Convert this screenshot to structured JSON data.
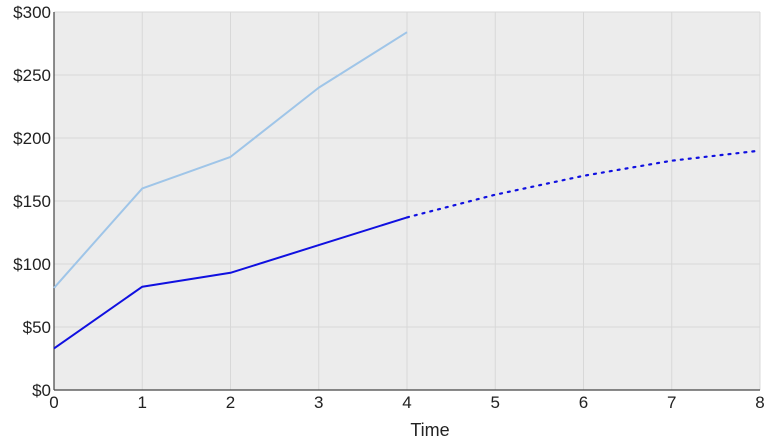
{
  "chart_data": {
    "type": "line",
    "title": "",
    "xlabel": "Time",
    "ylabel": "",
    "xlim": [
      0,
      8
    ],
    "ylim": [
      0,
      300
    ],
    "x_ticks": [
      0,
      1,
      2,
      3,
      4,
      5,
      6,
      7,
      8
    ],
    "y_ticks": [
      0,
      50,
      100,
      150,
      200,
      250,
      300
    ],
    "y_tick_labels": [
      "$0",
      "$50",
      "$100",
      "$150",
      "$200",
      "$250",
      "$300"
    ],
    "grid": true,
    "legend": "none",
    "series": [
      {
        "color": "#9fc5e8",
        "style": "solid",
        "points": [
          [
            0,
            81
          ],
          [
            1,
            160
          ],
          [
            2,
            185
          ],
          [
            3,
            240
          ],
          [
            4,
            284
          ]
        ]
      },
      {
        "color": "#1010e0",
        "style": "solid",
        "points": [
          [
            0,
            33
          ],
          [
            1,
            82
          ],
          [
            2,
            93
          ],
          [
            3,
            115
          ],
          [
            4,
            137
          ]
        ]
      },
      {
        "color": "#1010e0",
        "style": "dotted",
        "points": [
          [
            4,
            137
          ],
          [
            5,
            155
          ],
          [
            6,
            170
          ],
          [
            7,
            182
          ],
          [
            8,
            190
          ]
        ]
      }
    ],
    "colors": {
      "plot_background": "#ececec",
      "grid": "#d8d8d8",
      "axis": "#444444"
    }
  }
}
